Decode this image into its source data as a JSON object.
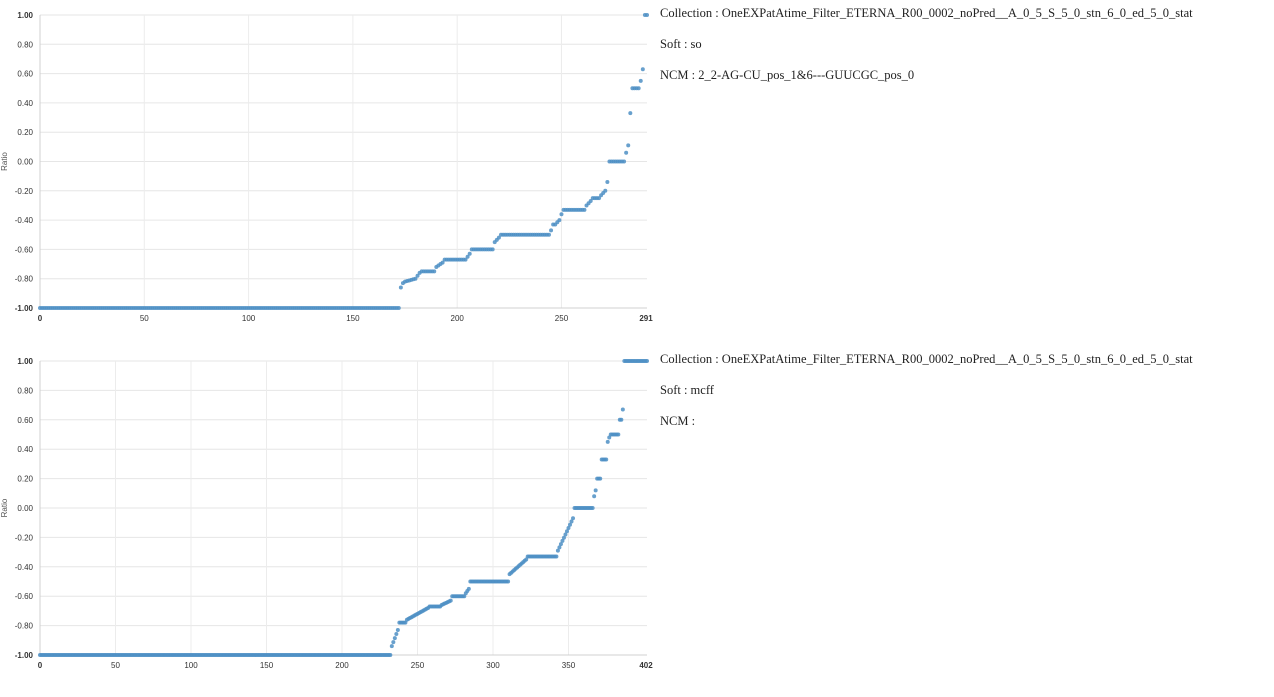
{
  "charts": [
    {
      "info": {
        "collection": "Collection : OneEXPatAtime_Filter_ETERNA_R00_0002_noPred__A_0_5_S_5_0_stn_6_0_ed_5_0_stat",
        "soft": "Soft : so",
        "ncm": "NCM : 2_2-AG-CU_pos_1&6---GUUCGC_pos_0"
      },
      "chart_data": {
        "type": "scatter",
        "ylabel": "Ratio",
        "xlim": [
          0,
          291
        ],
        "ylim": [
          -1,
          1
        ],
        "x_ticks": [
          "0",
          "50",
          "100",
          "150",
          "200",
          "250"
        ],
        "x_max_label": "291",
        "y_ticks": [
          "-1.00",
          "-0.80",
          "-0.60",
          "-0.40",
          "-0.20",
          "0.00",
          "0.20",
          "0.40",
          "0.60",
          "0.80",
          "1.00"
        ],
        "color": "#4e8fc4",
        "segments": [
          {
            "x_from": 0,
            "x_to": 172,
            "y_from": -1.0,
            "y_to": -1.0
          },
          {
            "x_from": 173,
            "x_to": 174,
            "y_from": -0.86,
            "y_to": -0.83
          },
          {
            "x_from": 175,
            "x_to": 180,
            "y_from": -0.82,
            "y_to": -0.8
          },
          {
            "x_from": 181,
            "x_to": 182,
            "y_from": -0.78,
            "y_to": -0.76
          },
          {
            "x_from": 183,
            "x_to": 189,
            "y_from": -0.75,
            "y_to": -0.75
          },
          {
            "x_from": 190,
            "x_to": 193,
            "y_from": -0.72,
            "y_to": -0.69
          },
          {
            "x_from": 194,
            "x_to": 204,
            "y_from": -0.67,
            "y_to": -0.67
          },
          {
            "x_from": 205,
            "x_to": 206,
            "y_from": -0.65,
            "y_to": -0.63
          },
          {
            "x_from": 207,
            "x_to": 217,
            "y_from": -0.6,
            "y_to": -0.6
          },
          {
            "x_from": 218,
            "x_to": 220,
            "y_from": -0.55,
            "y_to": -0.52
          },
          {
            "x_from": 221,
            "x_to": 244,
            "y_from": -0.5,
            "y_to": -0.5
          },
          {
            "x_from": 245,
            "x_to": 246,
            "y_from": -0.47,
            "y_to": -0.43
          },
          {
            "x_from": 247,
            "x_to": 249,
            "y_from": -0.43,
            "y_to": -0.4
          },
          {
            "x_from": 250,
            "x_to": 251,
            "y_from": -0.36,
            "y_to": -0.33
          },
          {
            "x_from": 252,
            "x_to": 261,
            "y_from": -0.33,
            "y_to": -0.33
          },
          {
            "x_from": 262,
            "x_to": 264,
            "y_from": -0.3,
            "y_to": -0.27
          },
          {
            "x_from": 265,
            "x_to": 268,
            "y_from": -0.25,
            "y_to": -0.25
          },
          {
            "x_from": 269,
            "x_to": 271,
            "y_from": -0.23,
            "y_to": -0.2
          },
          {
            "x_from": 272,
            "x_to": 272,
            "y_from": -0.14,
            "y_to": -0.14
          },
          {
            "x_from": 273,
            "x_to": 280,
            "y_from": 0.0,
            "y_to": 0.0
          },
          {
            "x_from": 281,
            "x_to": 281,
            "y_from": 0.06,
            "y_to": 0.06
          },
          {
            "x_from": 282,
            "x_to": 282,
            "y_from": 0.11,
            "y_to": 0.11
          },
          {
            "x_from": 283,
            "x_to": 283,
            "y_from": 0.33,
            "y_to": 0.33
          },
          {
            "x_from": 284,
            "x_to": 287,
            "y_from": 0.5,
            "y_to": 0.5
          },
          {
            "x_from": 288,
            "x_to": 288,
            "y_from": 0.55,
            "y_to": 0.55
          },
          {
            "x_from": 289,
            "x_to": 289,
            "y_from": 0.63,
            "y_to": 0.63
          },
          {
            "x_from": 290,
            "x_to": 291,
            "y_from": 1.0,
            "y_to": 1.0
          }
        ]
      }
    },
    {
      "info": {
        "collection": "Collection : OneEXPatAtime_Filter_ETERNA_R00_0002_noPred__A_0_5_S_5_0_stn_6_0_ed_5_0_stat",
        "soft": "Soft : mcff",
        "ncm": "NCM : "
      },
      "chart_data": {
        "type": "scatter",
        "ylabel": "Ratio",
        "xlim": [
          0,
          402
        ],
        "ylim": [
          -1,
          1
        ],
        "x_ticks": [
          "0",
          "50",
          "100",
          "150",
          "200",
          "250",
          "300",
          "350"
        ],
        "x_max_label": "402",
        "y_ticks": [
          "-1.00",
          "-0.80",
          "-0.60",
          "-0.40",
          "-0.20",
          "0.00",
          "0.20",
          "0.40",
          "0.60",
          "0.80",
          "1.00"
        ],
        "color": "#4e8fc4",
        "segments": [
          {
            "x_from": 0,
            "x_to": 232,
            "y_from": -1.0,
            "y_to": -1.0
          },
          {
            "x_from": 233,
            "x_to": 237,
            "y_from": -0.94,
            "y_to": -0.83
          },
          {
            "x_from": 238,
            "x_to": 242,
            "y_from": -0.78,
            "y_to": -0.78
          },
          {
            "x_from": 243,
            "x_to": 257,
            "y_from": -0.76,
            "y_to": -0.68
          },
          {
            "x_from": 258,
            "x_to": 265,
            "y_from": -0.67,
            "y_to": -0.67
          },
          {
            "x_from": 266,
            "x_to": 272,
            "y_from": -0.66,
            "y_to": -0.63
          },
          {
            "x_from": 273,
            "x_to": 281,
            "y_from": -0.6,
            "y_to": -0.6
          },
          {
            "x_from": 282,
            "x_to": 284,
            "y_from": -0.58,
            "y_to": -0.55
          },
          {
            "x_from": 285,
            "x_to": 310,
            "y_from": -0.5,
            "y_to": -0.5
          },
          {
            "x_from": 311,
            "x_to": 322,
            "y_from": -0.45,
            "y_to": -0.35
          },
          {
            "x_from": 323,
            "x_to": 342,
            "y_from": -0.33,
            "y_to": -0.33
          },
          {
            "x_from": 343,
            "x_to": 353,
            "y_from": -0.29,
            "y_to": -0.07
          },
          {
            "x_from": 354,
            "x_to": 366,
            "y_from": 0.0,
            "y_to": 0.0
          },
          {
            "x_from": 367,
            "x_to": 368,
            "y_from": 0.08,
            "y_to": 0.12
          },
          {
            "x_from": 369,
            "x_to": 371,
            "y_from": 0.2,
            "y_to": 0.2
          },
          {
            "x_from": 372,
            "x_to": 375,
            "y_from": 0.33,
            "y_to": 0.33
          },
          {
            "x_from": 376,
            "x_to": 377,
            "y_from": 0.45,
            "y_to": 0.48
          },
          {
            "x_from": 378,
            "x_to": 383,
            "y_from": 0.5,
            "y_to": 0.5
          },
          {
            "x_from": 384,
            "x_to": 385,
            "y_from": 0.6,
            "y_to": 0.6
          },
          {
            "x_from": 386,
            "x_to": 386,
            "y_from": 0.67,
            "y_to": 0.67
          },
          {
            "x_from": 387,
            "x_to": 402,
            "y_from": 1.0,
            "y_to": 1.0
          }
        ]
      }
    }
  ]
}
